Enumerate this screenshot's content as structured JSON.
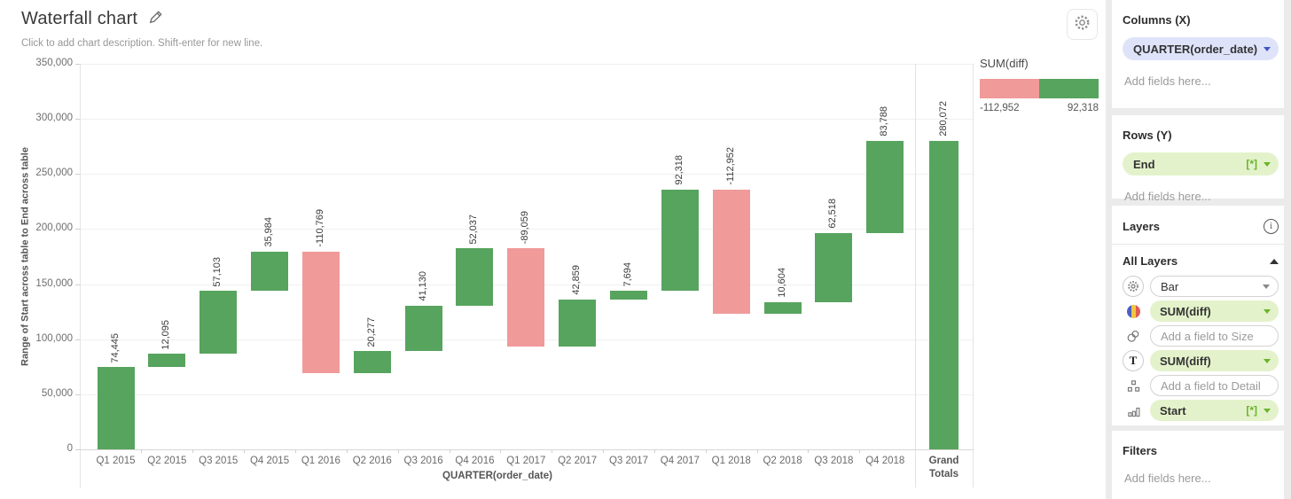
{
  "header": {
    "title": "Waterfall chart",
    "subtitle": "Click to add chart description. Shift-enter for new line."
  },
  "legend": {
    "title": "SUM(diff)",
    "min_label": "-112,952",
    "max_label": "92,318",
    "min_color": "#f09a9a",
    "max_color": "#57a45e"
  },
  "chart_data": {
    "type": "bar",
    "subtype": "waterfall",
    "xlabel": "QUARTER(order_date)",
    "ylabel": "Range of Start across table to End across table",
    "ylim": [
      0,
      350000
    ],
    "grid": true,
    "legend_position": "top-right",
    "colors": {
      "increase": "#57a45e",
      "decrease": "#f09a9a",
      "total": "#57a45e"
    },
    "yticks": [
      {
        "value": 0,
        "label": "0"
      },
      {
        "value": 50000,
        "label": "50,000"
      },
      {
        "value": 100000,
        "label": "100,000"
      },
      {
        "value": 150000,
        "label": "150,000"
      },
      {
        "value": 200000,
        "label": "200,000"
      },
      {
        "value": 250000,
        "label": "250,000"
      },
      {
        "value": 300000,
        "label": "300,000"
      },
      {
        "value": 350000,
        "label": "350,000"
      }
    ],
    "bars": [
      {
        "category": "Q1 2015",
        "diff": 74445,
        "label": "74,445",
        "start": 0,
        "end": 74445,
        "kind": "increase"
      },
      {
        "category": "Q2 2015",
        "diff": 12095,
        "label": "12,095",
        "start": 74445,
        "end": 86540,
        "kind": "increase"
      },
      {
        "category": "Q3 2015",
        "diff": 57103,
        "label": "57,103",
        "start": 86540,
        "end": 143643,
        "kind": "increase"
      },
      {
        "category": "Q4 2015",
        "diff": 35984,
        "label": "35,984",
        "start": 143643,
        "end": 179627,
        "kind": "increase"
      },
      {
        "category": "Q1 2016",
        "diff": -110769,
        "label": "-110,769",
        "start": 179627,
        "end": 68858,
        "kind": "decrease"
      },
      {
        "category": "Q2 2016",
        "diff": 20277,
        "label": "20,277",
        "start": 68858,
        "end": 89135,
        "kind": "increase"
      },
      {
        "category": "Q3 2016",
        "diff": 41130,
        "label": "41,130",
        "start": 89135,
        "end": 130265,
        "kind": "increase"
      },
      {
        "category": "Q4 2016",
        "diff": 52037,
        "label": "52,037",
        "start": 130265,
        "end": 182302,
        "kind": "increase"
      },
      {
        "category": "Q1 2017",
        "diff": -89059,
        "label": "-89,059",
        "start": 182302,
        "end": 93243,
        "kind": "decrease"
      },
      {
        "category": "Q2 2017",
        "diff": 42859,
        "label": "42,859",
        "start": 93243,
        "end": 136102,
        "kind": "increase"
      },
      {
        "category": "Q3 2017",
        "diff": 7694,
        "label": "7,694",
        "start": 136102,
        "end": 143796,
        "kind": "increase"
      },
      {
        "category": "Q4 2017",
        "diff": 92318,
        "label": "92,318",
        "start": 143796,
        "end": 236114,
        "kind": "increase"
      },
      {
        "category": "Q1 2018",
        "diff": -112952,
        "label": "-112,952",
        "start": 236114,
        "end": 123162,
        "kind": "decrease"
      },
      {
        "category": "Q2 2018",
        "diff": 10604,
        "label": "10,604",
        "start": 123162,
        "end": 133766,
        "kind": "increase"
      },
      {
        "category": "Q3 2018",
        "diff": 62518,
        "label": "62,518",
        "start": 133766,
        "end": 196284,
        "kind": "increase"
      },
      {
        "category": "Q4 2018",
        "diff": 83788,
        "label": "83,788",
        "start": 196284,
        "end": 280072,
        "kind": "increase"
      },
      {
        "category": "Grand Totals",
        "diff": 280072,
        "label": "280,072",
        "start": 0,
        "end": 280072,
        "kind": "total"
      }
    ]
  },
  "sidebar": {
    "columns": {
      "title": "Columns (X)",
      "pill": {
        "label": "QUARTER(order_date)"
      },
      "placeholder": "Add fields here..."
    },
    "rows": {
      "title": "Rows (Y)",
      "pill": {
        "label": "End",
        "badge": "[*]"
      },
      "placeholder": "Add fields here..."
    },
    "layers": {
      "title": "Layers",
      "all_layers_title": "All Layers",
      "mark_type": {
        "icon": "gear-icon",
        "value": "Bar"
      },
      "slots": [
        {
          "icon": "color-icon",
          "value": "SUM(diff)"
        },
        {
          "icon": "size-icon",
          "placeholder": "Add a field to Size"
        },
        {
          "icon": "text-icon",
          "value": "SUM(diff)"
        },
        {
          "icon": "detail-icon",
          "placeholder": "Add a field to Detail"
        },
        {
          "icon": "tooltip-icon",
          "value": "Start",
          "badge": "[*]"
        }
      ]
    },
    "filters": {
      "title": "Filters",
      "placeholder": "Add fields here..."
    }
  }
}
